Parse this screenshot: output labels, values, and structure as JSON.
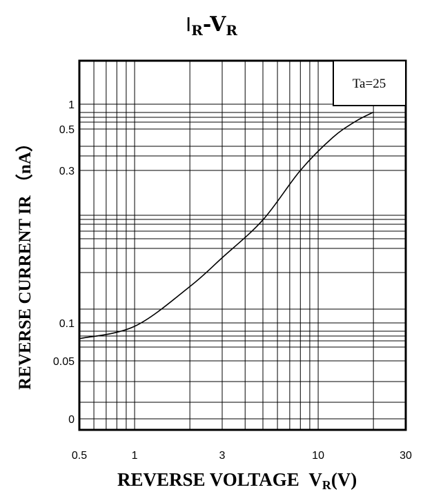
{
  "chart_data": {
    "type": "line",
    "title": "IR-VR",
    "title_main": "I",
    "title_main_sub": "R",
    "title_sep": "-",
    "title_second": "V",
    "title_second_sub": "R",
    "xlabel": "REVERSE VOLTAGE",
    "xlabel_var": "V",
    "xlabel_sub": "R",
    "xlabel_unit": "(V)",
    "ylabel": "REVERSE CURRENT IR （nA）",
    "x_scale": "log",
    "x_ticks": [
      {
        "label": "0.5",
        "value": 0.5
      },
      {
        "label": "1",
        "value": 1
      },
      {
        "label": "3",
        "value": 3
      },
      {
        "label": "10",
        "value": 10
      },
      {
        "label": "30",
        "value": 30
      }
    ],
    "y_ticks": [
      {
        "label": "1",
        "value": 1
      },
      {
        "label": "0.5",
        "value": 0.5
      },
      {
        "label": "0.3",
        "value": 0.3
      },
      {
        "label": "0.1",
        "value": 0.1
      },
      {
        "label": "0.05",
        "value": 0.05
      },
      {
        "label": "0",
        "value": 0
      }
    ],
    "annotation": "Ta=25",
    "grid": true,
    "series": [
      {
        "x": [
          0.5,
          1,
          2,
          3,
          5,
          8,
          12,
          16,
          20
        ],
        "y": [
          0.075,
          0.094,
          0.13,
          0.16,
          0.21,
          0.3,
          0.45,
          0.62,
          0.8
        ]
      }
    ]
  }
}
